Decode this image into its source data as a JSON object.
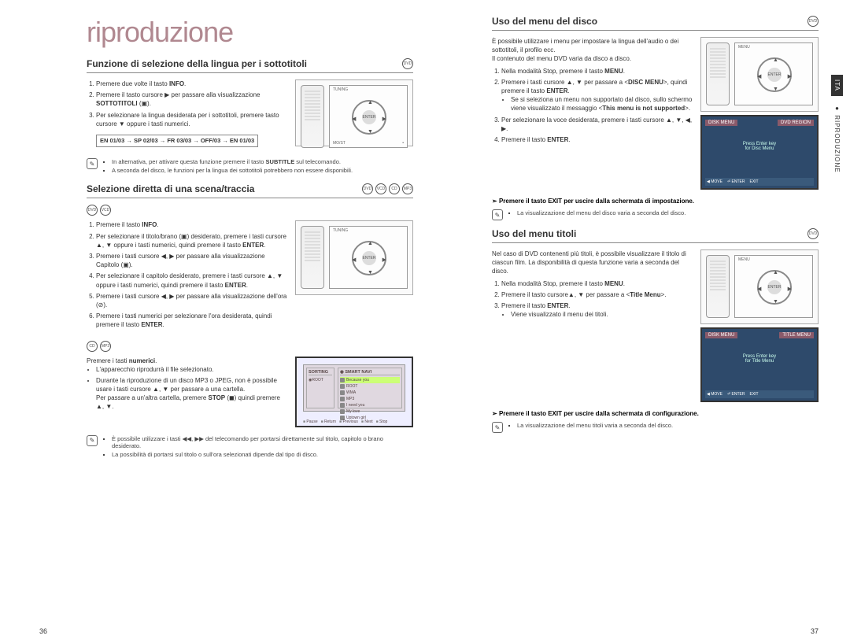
{
  "left": {
    "main_title": "riproduzione",
    "page_num": "36",
    "s1": {
      "title": "Funzione di selezione della lingua per i sottotitoli",
      "icons": [
        "DVD"
      ],
      "steps": [
        "Premere due volte il tasto <b>INFO</b>.",
        "Premere il tasto cursore ▶ per passare alla visualizzazione <b>SOTTOTITOLI</b> (▣).",
        "Per selezionare la lingua desiderata per i sottotitoli, premere tasto cursore ▼ oppure i tasti numerici."
      ],
      "sequence": "EN 01/03 → SP 02/03 → FR 03/03 → OFF/03 → EN 01/03",
      "notes": [
        "In alternativa, per attivare questa funzione premere il tasto <b>SUBTITLE</b> sul telecomando.",
        "A seconda del disco, le funzioni per la lingua dei sottotitoli potrebbero non essere disponibili."
      ]
    },
    "s2": {
      "title": "Selezione diretta di una scena/traccia",
      "icons": [
        "DVD",
        "VCD",
        "CD",
        "MP3"
      ],
      "sub_icons_a": [
        "DVD",
        "VCD"
      ],
      "steps_a": [
        "Premere il tasto <b>INFO</b>.",
        "Per selezionare il titolo/brano (▣) desiderato, premere i tasti cursore ▲, ▼ oppure i tasti numerici, quindi premere il tasto <b>ENTER</b>.",
        "Premere i tasti cursore ◀, ▶ per passare alla visualizzazione Capitolo (▣).",
        "Per selezionare il capitolo desiderato, premere i tasti cursore ▲, ▼ oppure i tasti numerici, quindi premere il tasto <b>ENTER</b>.",
        "Premere i tasti cursore ◀, ▶ per passare alla visualizzazione dell'ora (⊘).",
        "Premere i tasti numerici per selezionare l'ora desiderata, quindi premere il tasto <b>ENTER</b>."
      ],
      "sub_icons_b": [
        "CD",
        "MP3"
      ],
      "text_b_intro": "Premere i tasti <b>numerici</b>.",
      "text_b_items": [
        "L'apparecchio riprodurrà il file selezionato.",
        "Durante la riproduzione di un disco MP3 o JPEG, non è possibile usare i tasti cursore ▲, ▼ per passare a una cartella.<br>Per passare a un'altra cartella, premere <b>STOP</b> (◼) quindi premere ▲, ▼."
      ],
      "nav_hdr1": "SORTING",
      "nav_hdr2": "◉ SMART NAVI",
      "nav_root": "◉ROOT",
      "nav_items": [
        "Because you",
        "ROOT",
        "WMA",
        "MP3",
        "I need you",
        "My love",
        "Uptown girl"
      ],
      "nav_ftr": [
        "Pause",
        "Return",
        "Previous",
        "Next",
        "Stop"
      ],
      "notes_b": [
        "È possibile utilizzare i tasti ◀◀, ▶▶ del telecomando per portarsi direttamente sul titolo, capitolo o brano desiderato.",
        "La possibilità di portarsi sul titolo o sull'ora selezionati dipende dal tipo di disco."
      ]
    }
  },
  "right": {
    "page_num": "37",
    "side_lang": "ITA",
    "side_crumb": "RIPRODUZIONE",
    "s1": {
      "title": "Uso del menu del disco",
      "icons": [
        "DVD"
      ],
      "intro": "È possibile utilizzare i menu per impostare la lingua dell'audio o dei sottotitoli, il profilo ecc.<br>Il contenuto del menu DVD varia da disco a disco.",
      "steps": [
        "Nella modalità Stop, premere il tasto <b>MENU</b>.",
        "Premere i tasti cursore ▲, ▼ per passare a &lt;<b>DISC MENU</b>&gt;, quindi premere il tasto <b>ENTER</b>.<ul class='bullet-sub'><li>Se si seleziona un menu non supportato dal disco, sullo schermo viene visualizzato il messaggio &lt;<b>This menu is not supported</b>&gt;.</li></ul>",
        "Per selezionare la voce desiderata, premere i tasti cursore ▲, ▼, ◀, ▶.",
        "Premere il tasto <b>ENTER</b>."
      ],
      "callout": "Premere il tasto EXIT per uscire dalla schermata di impostazione.",
      "tv_left": "DISK MENU",
      "tv_right": "DVD REGION",
      "tv_center": "Press Enter key<br>for Disc Menu",
      "tv_footer": [
        "◀ MOVE",
        "⏎ ENTER",
        "EXIT"
      ],
      "note": "La visualizzazione del menu del disco varia a seconda del disco."
    },
    "s2": {
      "title": "Uso del menu titoli",
      "icons": [
        "DVD"
      ],
      "intro": "Nel caso di DVD contenenti più titoli, è possibile visualizzare il titolo di ciascun film. La disponibilità di questa funzione varia a seconda del disco.",
      "steps": [
        "Nella modalità Stop, premere il tasto <b>MENU</b>.",
        "Premere il tasto cursore▲, ▼ per passare a &lt;<b>Title Menu</b>&gt;.",
        "Premere il tasto <b>ENTER</b>.<ul class='bullet-sub'><li>Viene visualizzato il menu dei titoli.</li></ul>"
      ],
      "callout": "Premere il tasto EXIT per uscire dalla schermata di configurazione.",
      "tv_left": "DISK MENU",
      "tv_right": "TITLE MENU",
      "tv_center": "Press Enter key<br>for Title Menu",
      "tv_footer": [
        "◀ MOVE",
        "⏎ ENTER",
        "EXIT"
      ],
      "note": "La visualizzazione del menu titoli varia a seconda del disco."
    }
  }
}
